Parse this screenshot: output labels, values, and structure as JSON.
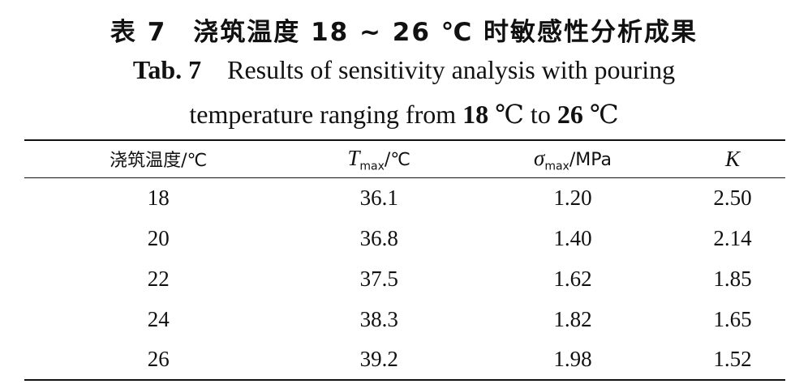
{
  "caption_cn": {
    "label": "表 7",
    "parts": [
      "浇筑温度 ",
      "18",
      " ~ ",
      "26",
      " ℃ 时敏感性分析成果"
    ]
  },
  "caption_en": {
    "label": "Tab. 7",
    "line1": "Results of sensitivity analysis with pouring",
    "line2": [
      "temperature ranging from ",
      "18",
      " ℃ to ",
      "26",
      " ℃"
    ]
  },
  "table": {
    "header": [
      {
        "text": "浇筑温度/℃"
      },
      {
        "symbol": "T",
        "sub": "max",
        "unit": "/℃"
      },
      {
        "symbol": "σ",
        "sub": "max",
        "unit": "/MPa"
      },
      {
        "symbol": "K"
      }
    ],
    "rows": [
      [
        "18",
        "36.1",
        "1.20",
        "2.50"
      ],
      [
        "20",
        "36.8",
        "1.40",
        "2.14"
      ],
      [
        "22",
        "37.5",
        "1.62",
        "1.85"
      ],
      [
        "24",
        "38.3",
        "1.82",
        "1.65"
      ],
      [
        "26",
        "39.2",
        "1.98",
        "1.52"
      ]
    ]
  }
}
